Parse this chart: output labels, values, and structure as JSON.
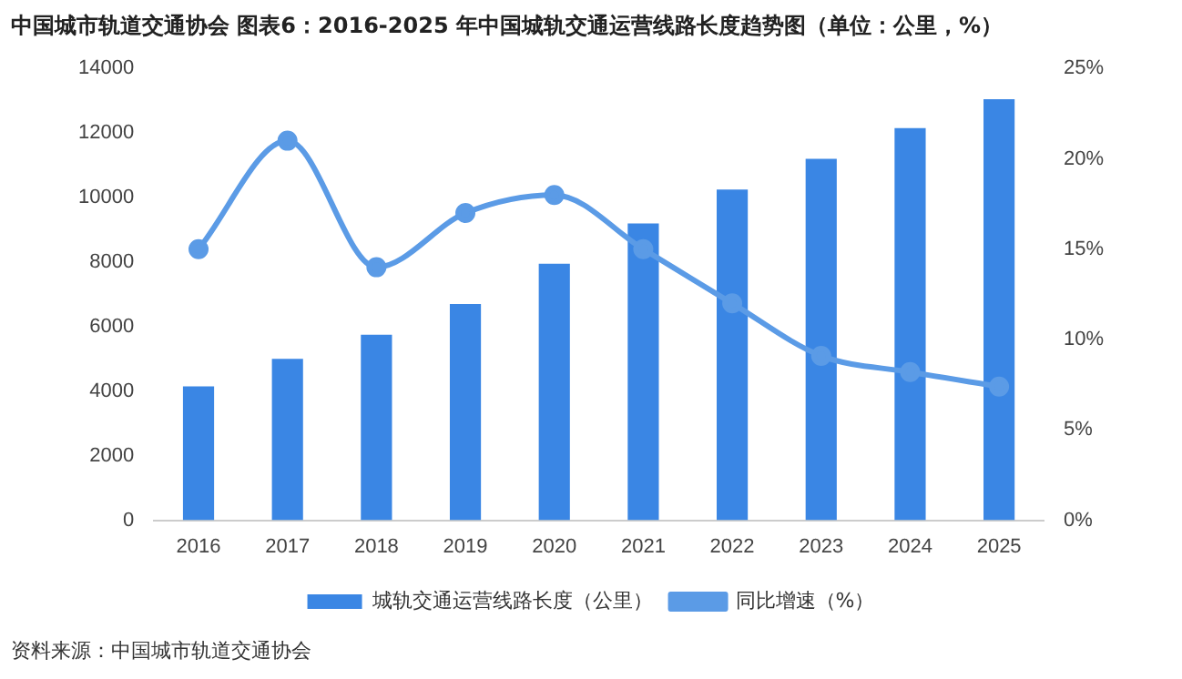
{
  "chart_data": {
    "type": "bar",
    "title": "中国城市轨道交通协会  图表6：2016-2025 年中国城轨交通运营线路长度趋势图（单位：公里，%）",
    "categories": [
      "2016",
      "2017",
      "2018",
      "2019",
      "2020",
      "2021",
      "2022",
      "2023",
      "2024",
      "2025"
    ],
    "series": [
      {
        "name": "城轨交通运营线路长度（公里）",
        "color": "#3a86e4",
        "values": [
          4150,
          5000,
          5750,
          6700,
          7950,
          9200,
          10250,
          11200,
          12150,
          13050
        ]
      },
      {
        "name": "同比增速（%）",
        "type": "line",
        "axis": "y2",
        "color": "#5b9be6",
        "values": [
          15,
          21,
          14,
          17,
          18,
          15,
          12,
          9.1,
          8.2,
          7.4
        ]
      }
    ],
    "ylim": [
      0,
      14000
    ],
    "yticks": [
      0,
      2000,
      4000,
      6000,
      8000,
      10000,
      12000,
      14000
    ],
    "y2lim": [
      0,
      25
    ],
    "y2ticks": [
      {
        "value": 0,
        "label": "0%"
      },
      {
        "value": 5,
        "label": "5%"
      },
      {
        "value": 10,
        "label": "10%"
      },
      {
        "value": 15,
        "label": "15%"
      },
      {
        "value": 20,
        "label": "20%"
      },
      {
        "value": 25,
        "label": "25%"
      }
    ],
    "grid": false,
    "legend": "bottom",
    "marker": "circle",
    "line_style": "solid",
    "annotations": [
      "资料来源：中国城市轨道交通协会"
    ]
  }
}
